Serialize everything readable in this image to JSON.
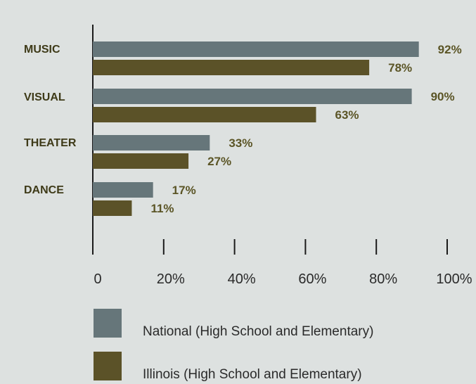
{
  "chart_data": {
    "type": "bar",
    "orientation": "horizontal",
    "categories": [
      "MUSIC",
      "VISUAL",
      "THEATER",
      "DANCE"
    ],
    "series": [
      {
        "name": "National (High School and Elementary)",
        "values": [
          92,
          90,
          33,
          17
        ],
        "color": "#66767a"
      },
      {
        "name": "Illinois (High School and Elementary)",
        "values": [
          78,
          63,
          27,
          11
        ],
        "color": "#5b5228"
      }
    ],
    "value_labels": [
      [
        "92%",
        "90%",
        "33%",
        "17%"
      ],
      [
        "78%",
        "63%",
        "27%",
        "11%"
      ]
    ],
    "xlim": [
      0,
      100
    ],
    "xticks": [
      0,
      20,
      40,
      60,
      80,
      100
    ],
    "xtick_labels": [
      "0",
      "20%",
      "40%",
      "60%",
      "80%",
      "100%"
    ],
    "legend_position": "bottom",
    "grid": false
  }
}
